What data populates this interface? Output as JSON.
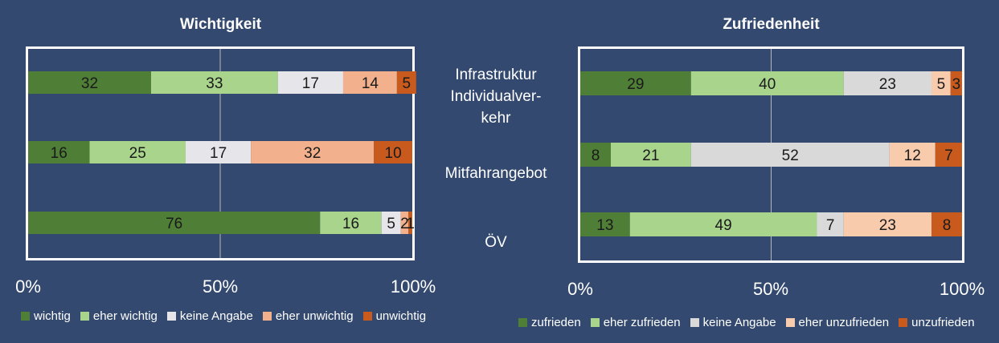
{
  "chart_data": [
    {
      "type": "bar",
      "orientation": "horizontal-stacked",
      "title": "Wichtigkeit",
      "categories": [
        "Infrastruktur Individualver-kehr",
        "Mitfahrangebot",
        "ÖV"
      ],
      "xlim": [
        0,
        100
      ],
      "xticks": [
        "0%",
        "50%",
        "100%"
      ],
      "series": [
        {
          "name": "wichtig",
          "color": "#4f7e37",
          "values": [
            32,
            16,
            76
          ]
        },
        {
          "name": "eher wichtig",
          "color": "#a8d48c",
          "values": [
            33,
            25,
            16
          ]
        },
        {
          "name": "keine Angabe",
          "color": "#e6e6ea",
          "values": [
            17,
            17,
            5
          ]
        },
        {
          "name": "eher unwichtig",
          "color": "#f2b08c",
          "values": [
            14,
            32,
            2
          ]
        },
        {
          "name": "unwichtig",
          "color": "#c85a1e",
          "values": [
            5,
            10,
            1
          ]
        }
      ],
      "grid": true,
      "legend": "bottom"
    },
    {
      "type": "bar",
      "orientation": "horizontal-stacked",
      "title": "Zufriedenheit",
      "categories": [
        "Infrastruktur Individualver-kehr",
        "Mitfahrangebot",
        "ÖV"
      ],
      "xlim": [
        0,
        100
      ],
      "xticks": [
        "0%",
        "50%",
        "100%"
      ],
      "series": [
        {
          "name": "zufrieden",
          "color": "#4f7e37",
          "values": [
            29,
            8,
            13
          ]
        },
        {
          "name": "eher zufrieden",
          "color": "#a8d48c",
          "values": [
            40,
            21,
            49
          ]
        },
        {
          "name": "keine Angabe",
          "color": "#d9d9d9",
          "values": [
            23,
            52,
            7
          ]
        },
        {
          "name": "eher unzufrieden",
          "color": "#f8cbad",
          "values": [
            5,
            12,
            23
          ]
        },
        {
          "name": "unzufrieden",
          "color": "#c85a1e",
          "values": [
            3,
            7,
            8
          ]
        }
      ],
      "grid": true,
      "legend": "bottom"
    }
  ],
  "category_labels": [
    [
      "Infrastruktur",
      "Individualver-",
      "kehr"
    ],
    [
      "Mitfahrangebot"
    ],
    [
      "ÖV"
    ]
  ]
}
